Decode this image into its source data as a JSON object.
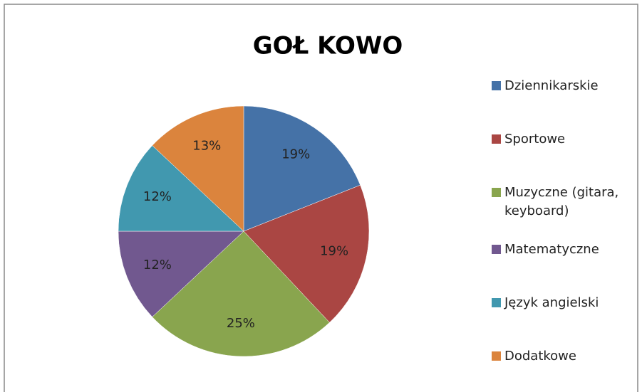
{
  "chart_data": {
    "type": "pie",
    "title": "GOŁ KOWO",
    "categories": [
      "Dziennikarskie",
      "Sportowe",
      "Muzyczne (gitara, keyboard)",
      "Matematyczne",
      "Język angielski",
      "Dodatkowe"
    ],
    "values": [
      19,
      19,
      25,
      12,
      12,
      13
    ],
    "value_labels": [
      "19%",
      "19%",
      "25%",
      "12%",
      "12%",
      "13%"
    ],
    "colors": [
      "#4572a7",
      "#aa4643",
      "#89a54e",
      "#71588f",
      "#4198af",
      "#db843d"
    ],
    "legend": "right"
  }
}
